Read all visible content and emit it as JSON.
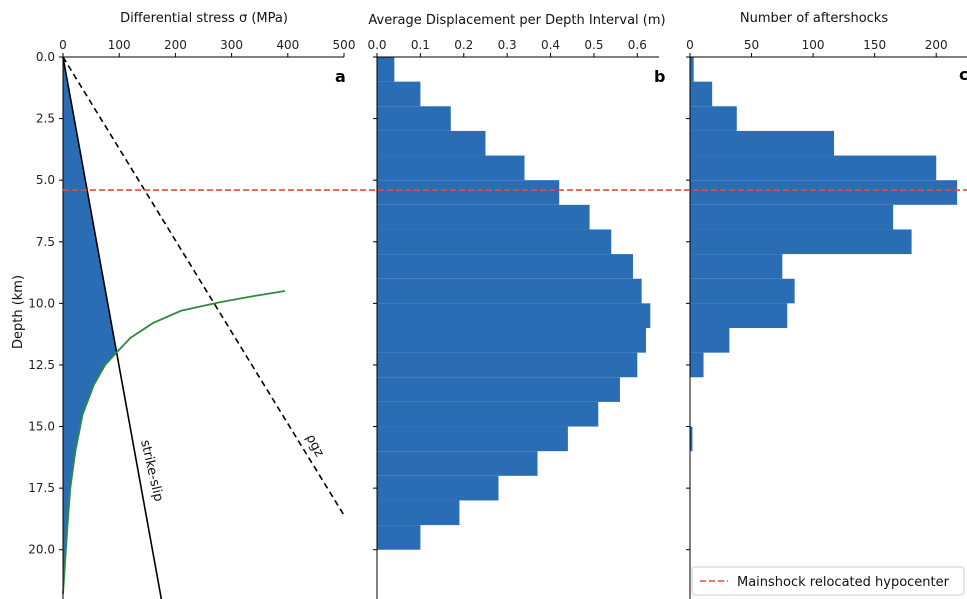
{
  "chart_data": [
    {
      "panel": "a",
      "type": "line",
      "xlabel": "Differential stress σ (MPa)",
      "ylabel": "Depth (km)",
      "xlim": [
        0,
        500
      ],
      "ylim": [
        22,
        0
      ],
      "xticks": [
        0,
        100,
        200,
        300,
        400,
        500
      ],
      "yticks": [
        0.0,
        2.5,
        5.0,
        7.5,
        10.0,
        12.5,
        15.0,
        17.5,
        20.0
      ],
      "ytick_labels": [
        "0.0",
        "2.5",
        "5.0",
        "7.5",
        "10.0",
        "12.5",
        "15.0",
        "17.5",
        "20.0"
      ],
      "annotations": [
        "strike-slip",
        "ρgz"
      ],
      "series": [
        {
          "kind": "strike-slip",
          "color": "#000000",
          "x": [
            0,
            175
          ],
          "y": [
            0,
            22
          ]
        },
        {
          "kind": "rho-g-z",
          "color": "#000000",
          "dashed": true,
          "x": [
            0,
            500
          ],
          "y": [
            0,
            18.6
          ]
        },
        {
          "kind": "ductile",
          "color": "#2e8b3e",
          "x": [
            0,
            8,
            13,
            22,
            35,
            55,
            75,
            95,
            120,
            160,
            210,
            280,
            340,
            395
          ],
          "y": [
            21.8,
            19.0,
            17.5,
            16.0,
            14.5,
            13.3,
            12.5,
            12.0,
            11.4,
            10.8,
            10.3,
            9.95,
            9.7,
            9.5
          ]
        },
        {
          "kind": "strength-envelope-fill",
          "color": "#2a6db5",
          "x": [
            0,
            95,
            75,
            55,
            35,
            22,
            13,
            8,
            0
          ],
          "y": [
            0,
            12.0,
            12.5,
            13.3,
            14.5,
            16.0,
            17.5,
            19.0,
            21.8
          ]
        }
      ]
    },
    {
      "panel": "b",
      "type": "bar",
      "xlabel": "Average Displacement per Depth Interval (m)",
      "xlim": [
        0,
        0.65
      ],
      "xticks": [
        0.0,
        0.1,
        0.2,
        0.3,
        0.4,
        0.5,
        0.6
      ],
      "xtick_labels": [
        "0.0",
        "0.1",
        "0.2",
        "0.3",
        "0.4",
        "0.5",
        "0.6"
      ],
      "ylim": [
        22,
        0
      ],
      "bin_edges": [
        0,
        1,
        2,
        3,
        4,
        5,
        6,
        7,
        8,
        9,
        10,
        11,
        12,
        13,
        14,
        15,
        16,
        17,
        18,
        19,
        20
      ],
      "values": [
        0.04,
        0.1,
        0.17,
        0.25,
        0.34,
        0.42,
        0.49,
        0.54,
        0.59,
        0.61,
        0.63,
        0.62,
        0.6,
        0.56,
        0.51,
        0.44,
        0.37,
        0.28,
        0.19,
        0.1
      ],
      "color": "#2a6db5"
    },
    {
      "panel": "c",
      "type": "bar",
      "xlabel": "Number of aftershocks",
      "xlim": [
        0,
        225
      ],
      "xticks": [
        0,
        50,
        100,
        150,
        200
      ],
      "ylim": [
        22,
        0
      ],
      "bin_edges": [
        0,
        1,
        2,
        3,
        4,
        5,
        6,
        7,
        8,
        9,
        10,
        11,
        12,
        13,
        14,
        15,
        16
      ],
      "values": [
        3,
        18,
        38,
        117,
        200,
        217,
        165,
        180,
        75,
        85,
        79,
        32,
        11,
        0,
        0,
        2
      ],
      "color": "#2a6db5"
    }
  ],
  "reference_line": {
    "depth": 5.4,
    "color": "#e8483a"
  },
  "legend": {
    "label": "Mainshock relocated hypocenter",
    "placement": "lower-right"
  },
  "panel_letters": {
    "a": "a",
    "b": "b",
    "c": "c"
  }
}
